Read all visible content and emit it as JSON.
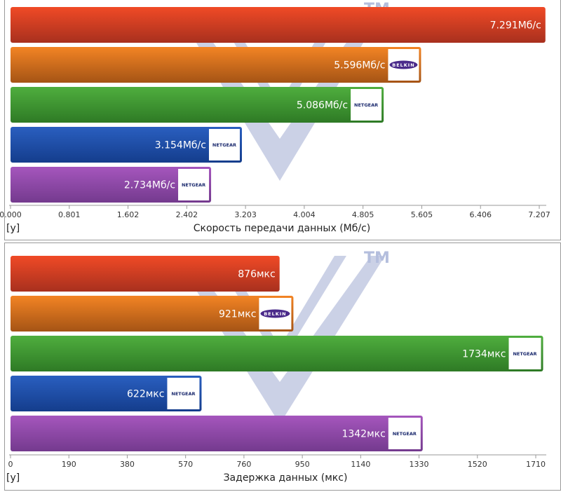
{
  "chart_data": [
    {
      "type": "bar",
      "orientation": "horizontal",
      "xlabel": "Скорость передачи данных (Мб/с)",
      "ylabel": "[y]",
      "xlim": [
        0,
        7.207
      ],
      "ticks": [
        "0.000",
        "0.801",
        "1.602",
        "2.402",
        "3.203",
        "4.004",
        "4.805",
        "5.605",
        "6.406",
        "7.207"
      ],
      "watermark": "TM",
      "bars": [
        {
          "value": 7.291,
          "label": "7.291Мб/с",
          "color": "red",
          "logo": ""
        },
        {
          "value": 5.596,
          "label": "5.596Мб/с",
          "color": "orange",
          "logo": "BELKIN"
        },
        {
          "value": 5.086,
          "label": "5.086Мб/с",
          "color": "green",
          "logo": "NETGEAR"
        },
        {
          "value": 3.154,
          "label": "3.154Мб/с",
          "color": "blue",
          "logo": "NETGEAR"
        },
        {
          "value": 2.734,
          "label": "2.734Мб/с",
          "color": "purple",
          "logo": "NETGEAR"
        }
      ]
    },
    {
      "type": "bar",
      "orientation": "horizontal",
      "xlabel": "Задержка данных (мкс)",
      "ylabel": "[y]",
      "xlim": [
        0,
        1710
      ],
      "ticks": [
        "0",
        "190",
        "380",
        "570",
        "760",
        "950",
        "1140",
        "1330",
        "1520",
        "1710"
      ],
      "watermark": "TM",
      "bars": [
        {
          "value": 876,
          "label": "876мкс",
          "color": "red",
          "logo": ""
        },
        {
          "value": 921,
          "label": "921мкс",
          "color": "orange",
          "logo": "BELKIN"
        },
        {
          "value": 1734,
          "label": "1734мкс",
          "color": "green",
          "logo": "NETGEAR"
        },
        {
          "value": 622,
          "label": "622мкс",
          "color": "blue",
          "logo": "NETGEAR"
        },
        {
          "value": 1342,
          "label": "1342мкс",
          "color": "purple",
          "logo": "NETGEAR"
        }
      ]
    }
  ],
  "colors": {
    "red": [
      "#f04a26",
      "#a8301e"
    ],
    "orange": [
      "#f38424",
      "#a55415"
    ],
    "green": [
      "#4fae3e",
      "#2e7a25"
    ],
    "blue": [
      "#2a5fc0",
      "#143d8c"
    ],
    "purple": [
      "#a556bd",
      "#743a8e"
    ],
    "watermark": "#c3c9e2",
    "belkin": "#4a2a8a",
    "netgear": "#1b2a6e"
  }
}
